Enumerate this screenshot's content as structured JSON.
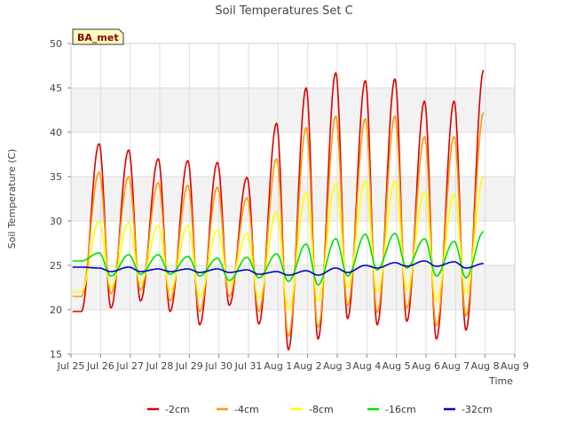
{
  "chart_data": {
    "type": "line",
    "title": "Soil Temperatures Set C",
    "xlabel": "Time",
    "ylabel": "Soil Temperature (C)",
    "badge": "BA_met",
    "xlim": [
      0,
      15
    ],
    "ylim": [
      15,
      50
    ],
    "x_ticks": [
      {
        "value": 0,
        "label": "Jul 25"
      },
      {
        "value": 1,
        "label": "Jul 26"
      },
      {
        "value": 2,
        "label": "Jul 27"
      },
      {
        "value": 3,
        "label": "Jul 28"
      },
      {
        "value": 4,
        "label": "Jul 29"
      },
      {
        "value": 5,
        "label": "Jul 30"
      },
      {
        "value": 6,
        "label": "Jul 31"
      },
      {
        "value": 7,
        "label": "Aug 1"
      },
      {
        "value": 8,
        "label": "Aug 2"
      },
      {
        "value": 9,
        "label": "Aug 3"
      },
      {
        "value": 10,
        "label": "Aug 4"
      },
      {
        "value": 11,
        "label": "Aug 5"
      },
      {
        "value": 12,
        "label": "Aug 6"
      },
      {
        "value": 13,
        "label": "Aug 7"
      },
      {
        "value": 14,
        "label": "Aug 8"
      },
      {
        "value": 15,
        "label": "Aug 9"
      }
    ],
    "y_ticks": [
      15,
      20,
      25,
      30,
      35,
      40,
      45,
      50
    ],
    "grid": true,
    "legend_position": "bottom-center",
    "daily_cycle": {
      "days": [
        "Jul 25",
        "Jul 26",
        "Jul 27",
        "Jul 28",
        "Jul 29",
        "Jul 30",
        "Jul 31",
        "Aug 1",
        "Aug 2",
        "Aug 3",
        "Aug 4",
        "Aug 5",
        "Aug 6",
        "Aug 7",
        "Aug 8"
      ],
      "max_hour_fraction": 0.6
    },
    "series": [
      {
        "name": "-2cm",
        "color": "#dd0000",
        "daily_max": [
          38.7,
          38.0,
          37.0,
          36.8,
          36.6,
          34.9,
          41.0,
          45.0,
          46.7,
          45.8,
          46.0,
          43.5,
          43.5,
          47.0
        ],
        "daily_min": [
          19.8,
          20.2,
          21.0,
          19.8,
          18.3,
          20.5,
          18.4,
          15.5,
          16.7,
          19.0,
          18.3,
          18.7,
          16.7,
          17.7,
          23.0
        ]
      },
      {
        "name": "-4cm",
        "color": "#ff9900",
        "daily_max": [
          35.5,
          35.0,
          34.3,
          34.0,
          33.8,
          32.6,
          37.0,
          40.5,
          41.8,
          41.5,
          41.8,
          39.5,
          39.5,
          42.2
        ],
        "daily_min": [
          21.5,
          21.8,
          22.2,
          21.0,
          19.8,
          21.5,
          19.8,
          17.0,
          18.0,
          20.5,
          19.7,
          20.2,
          18.2,
          19.3,
          24.0
        ]
      },
      {
        "name": "-8cm",
        "color": "#ffff00",
        "daily_max": [
          30.0,
          29.8,
          29.5,
          29.5,
          29.0,
          28.6,
          31.0,
          33.2,
          34.2,
          34.5,
          34.5,
          33.3,
          33.0,
          35.0
        ],
        "daily_min": [
          22.0,
          22.5,
          23.0,
          22.2,
          21.5,
          22.8,
          21.3,
          20.0,
          21.0,
          22.5,
          22.0,
          22.3,
          21.0,
          21.8,
          25.5
        ]
      },
      {
        "name": "-16cm",
        "color": "#00dd00",
        "daily_max": [
          26.4,
          26.2,
          26.2,
          26.0,
          25.8,
          25.9,
          26.3,
          27.4,
          28.0,
          28.5,
          28.6,
          28.0,
          27.7,
          28.8
        ],
        "daily_min": [
          25.5,
          23.8,
          24.0,
          24.0,
          23.8,
          23.3,
          23.6,
          23.2,
          22.8,
          23.8,
          24.5,
          24.7,
          23.8,
          23.6,
          24.0,
          27.2
        ]
      },
      {
        "name": "-32cm",
        "color": "#0000cc",
        "daily_max": [
          24.7,
          24.8,
          24.6,
          24.6,
          24.6,
          24.5,
          24.3,
          24.4,
          24.7,
          25.0,
          25.3,
          25.5,
          25.4,
          25.2,
          25.4
        ],
        "daily_min": [
          24.8,
          24.3,
          24.3,
          24.3,
          24.2,
          24.2,
          24.0,
          23.9,
          23.9,
          24.2,
          24.7,
          24.9,
          24.9,
          24.7,
          24.6
        ]
      }
    ]
  }
}
